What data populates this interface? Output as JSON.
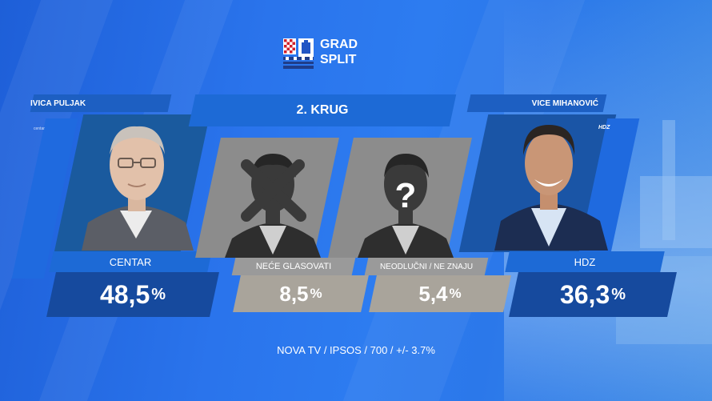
{
  "header": {
    "title_line1": "GRAD",
    "title_line2": "SPLIT"
  },
  "round": {
    "label": "2. KRUG"
  },
  "candidates": [
    {
      "name": "IVICA PULJAK",
      "tag": "centar",
      "party": "CENTAR",
      "value": "48,5",
      "unit": "%"
    },
    {
      "name": "VICE MIHANOVIĆ",
      "tag": "HDZ",
      "party": "HDZ",
      "value": "36,3",
      "unit": "%"
    }
  ],
  "others": [
    {
      "label": "NEĆE GLASOVATI",
      "value": "8,5",
      "unit": "%"
    },
    {
      "label": "NEODLUČNI / NE ZNAJU",
      "value": "5,4",
      "unit": "%",
      "symbol": "?"
    }
  ],
  "footer": {
    "source": "NOVA TV / IPSOS / 700 / +/- 3.7%"
  },
  "colors": {
    "background": "#2a74ec",
    "panel_dark": "#164a9e",
    "panel_mid": "#1d6ad6",
    "gray_panel": "#8a8a8a",
    "gray_value": "#a9a49b"
  },
  "icons": [
    "croatia-coat-of-arms-icon",
    "split-coat-of-arms-icon",
    "person-silhouette-icon",
    "cross-mark-icon",
    "question-mark-icon"
  ]
}
